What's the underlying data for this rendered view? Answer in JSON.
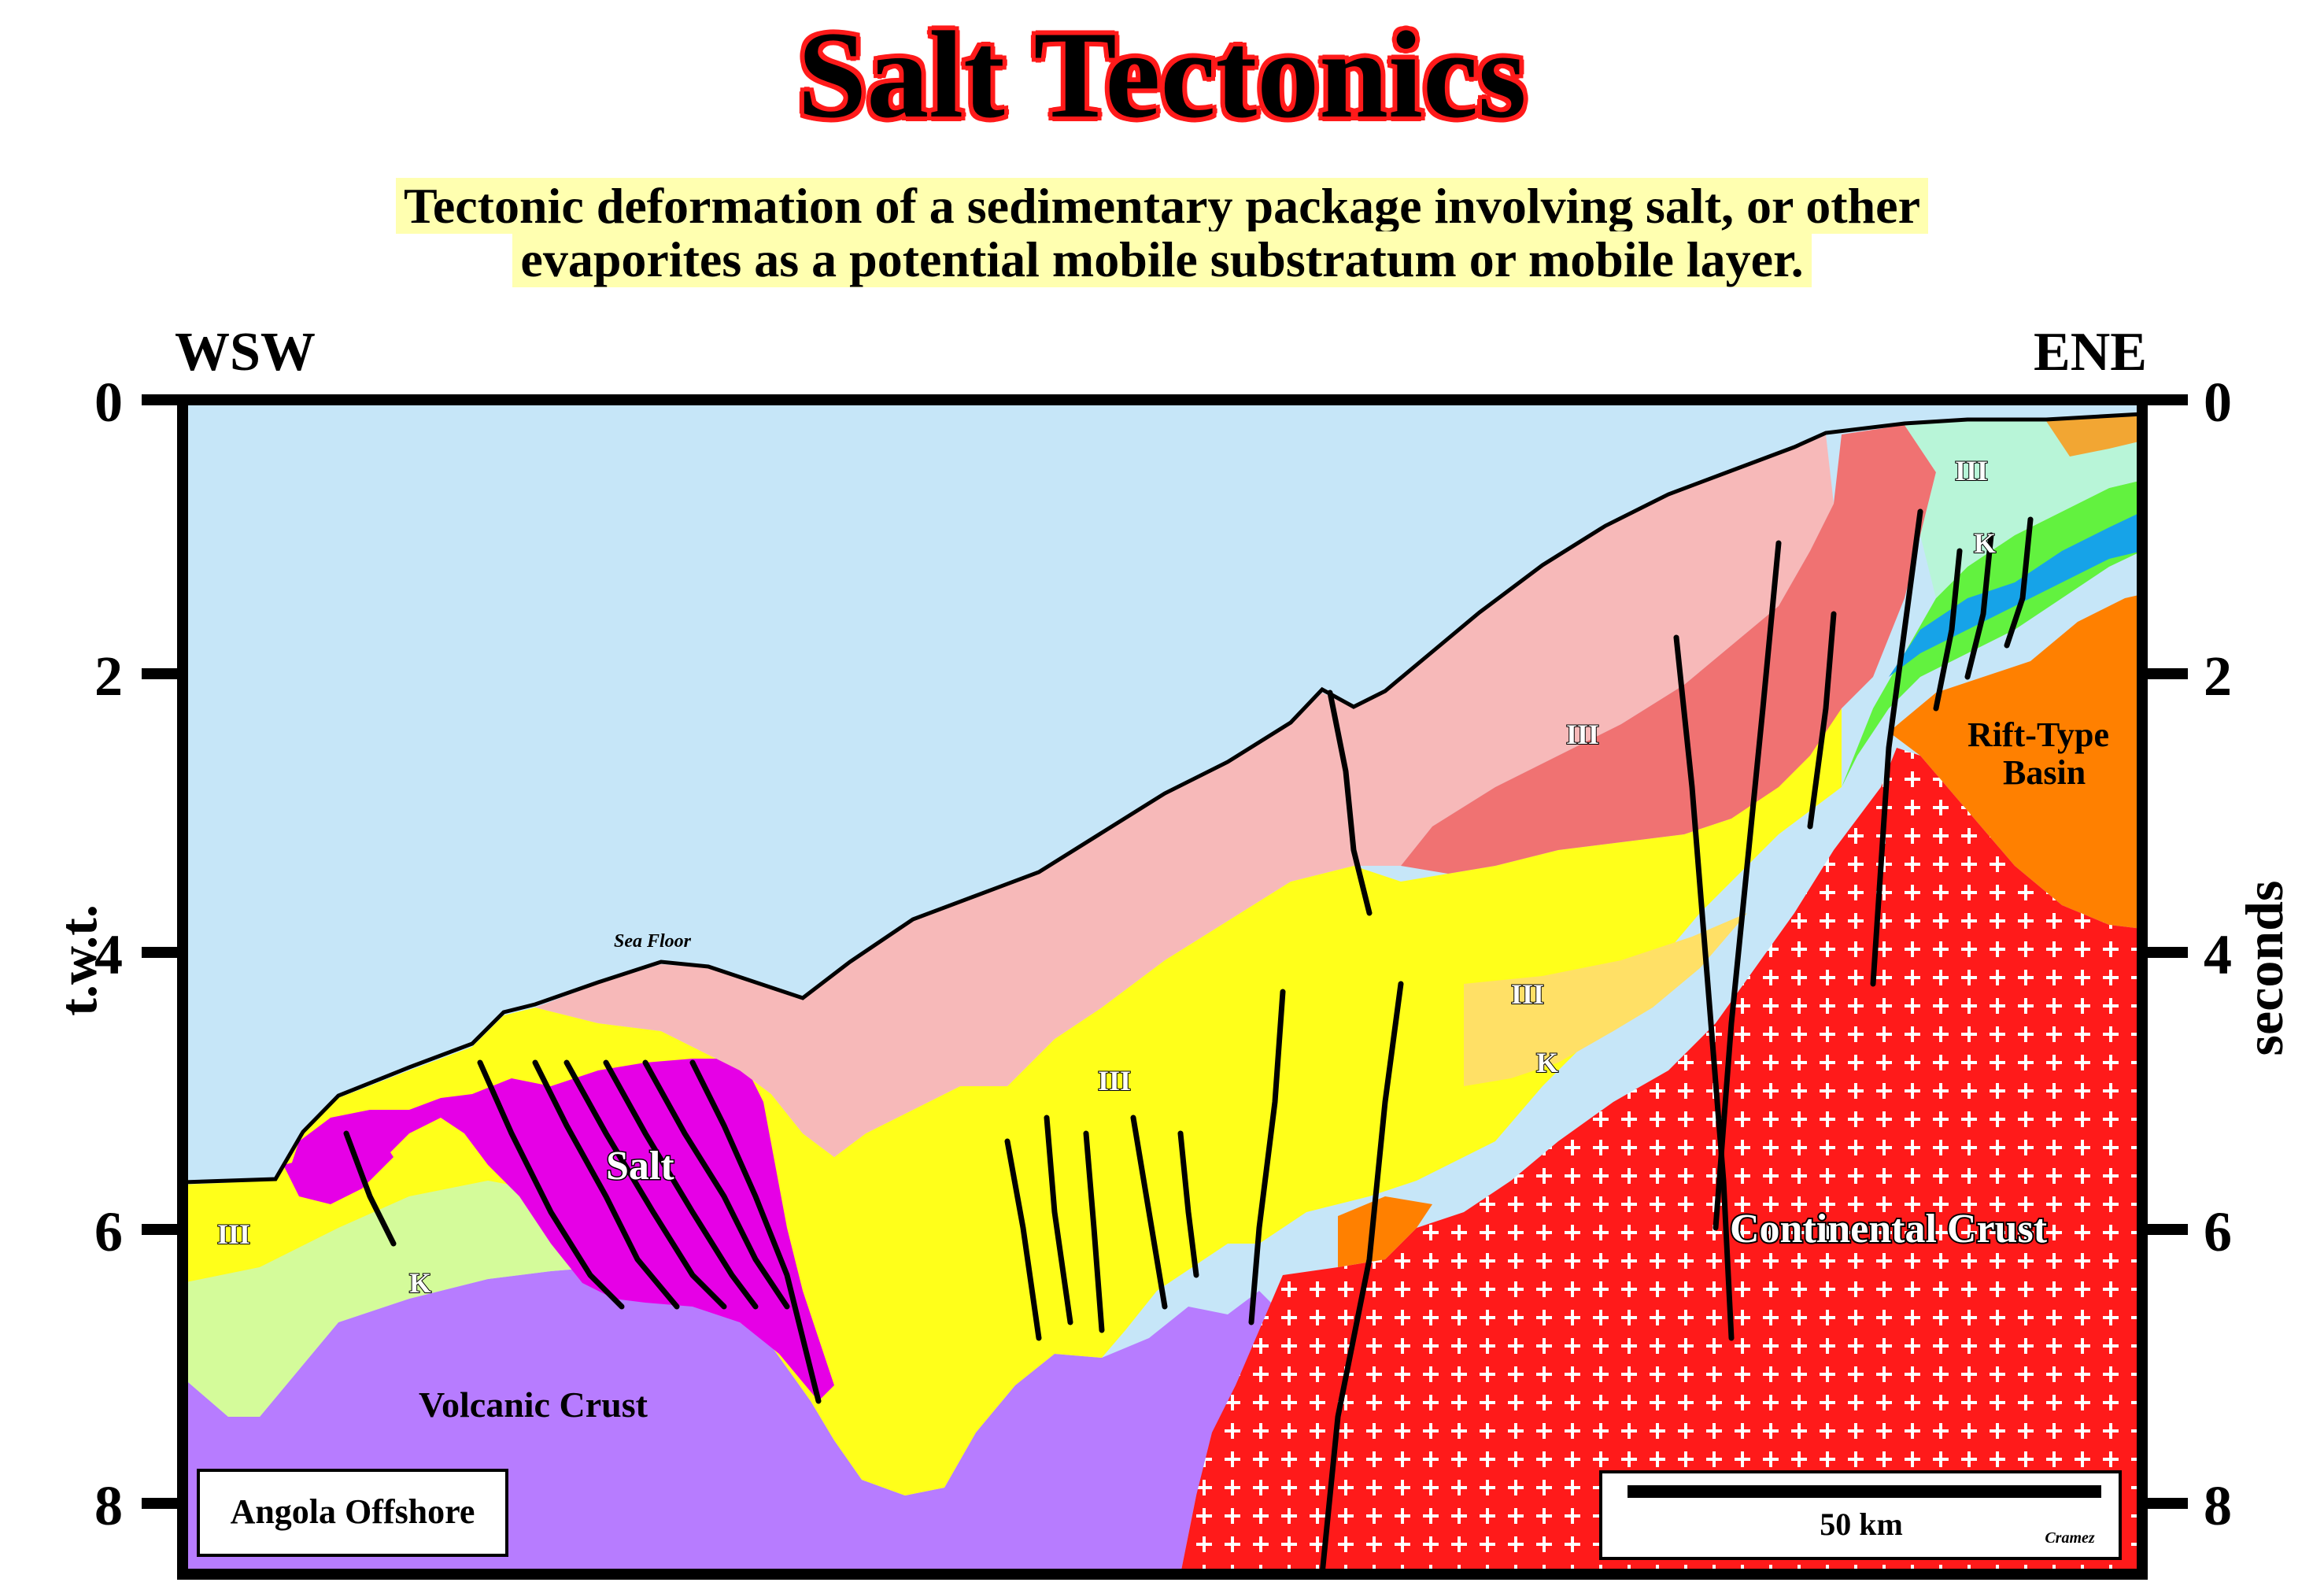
{
  "title": "Salt Tectonics",
  "subtitle": {
    "line1": "Tectonic deformation of a sedimentary package involving salt, or other",
    "line2": "evaporites as a potential mobile substratum or mobile layer."
  },
  "directions": {
    "left": "WSW",
    "right": "ENE"
  },
  "axis": {
    "left_title": "t.w.t.",
    "right_title": "seconds",
    "ticks": [
      "0",
      "2",
      "4",
      "6",
      "8"
    ]
  },
  "labels": {
    "sea_floor": "Sea Floor",
    "salt": "Salt",
    "volcanic_crust": "Volcanic Crust",
    "continental_crust": "Continental Crust",
    "rift_basin_line1": "Rift-Type",
    "rift_basin_line2": "Basin",
    "unit_iii": "III",
    "unit_k": "K",
    "location": "Angola Offshore",
    "scale": "50 km",
    "author": "Cramez"
  },
  "colors": {
    "sea": "#c6e6f8",
    "volcanic_crust": "#b77cff",
    "continental_crust": "#ff1a1a",
    "salt": "#e600e6",
    "unit_iii_yellow": "#ffff1a",
    "unit_k_green": "#d4fb9a",
    "pink_light": "#f7b9b9",
    "pink_dark": "#f07272",
    "rift_basin": "#ff8000",
    "blue_layer": "#16a3e8",
    "green_layer": "#62f23f"
  }
}
